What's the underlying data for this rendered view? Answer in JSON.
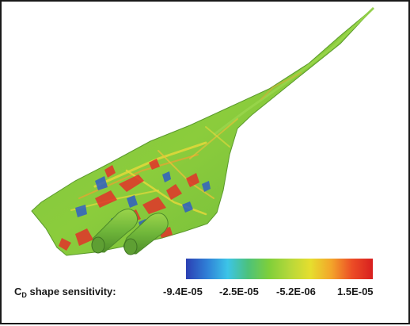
{
  "legend": {
    "label_prefix": "C",
    "label_subscript": "D",
    "label_suffix": " shape sensitivity:",
    "ticks": [
      "-9.4E-05",
      "-2.5E-05",
      "-5.2E-06",
      "1.5E-05"
    ]
  },
  "colormap": [
    "#2b3fb3",
    "#2f7fd6",
    "#3cc4e8",
    "#4cc27a",
    "#7fcf3a",
    "#b6d83a",
    "#e6de2e",
    "#f3a52a",
    "#ec4d26",
    "#d81f1f"
  ],
  "colors": {
    "surface_base": "#78c43e",
    "sensitivity_high": "#e2332a",
    "sensitivity_low": "#2f5fc4",
    "frame": "#1a1a1a"
  }
}
